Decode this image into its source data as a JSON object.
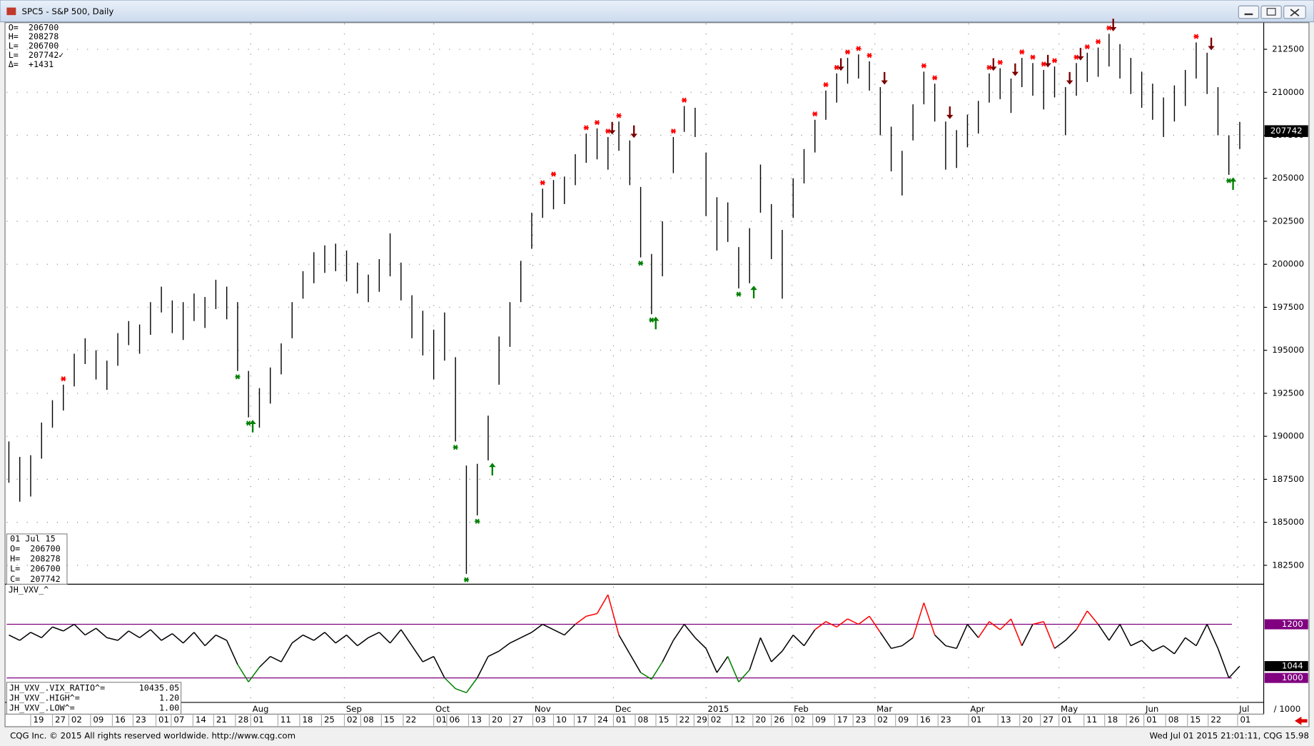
{
  "window": {
    "title": "SPC5 - S&P 500, Daily"
  },
  "footer": {
    "left": "CQG Inc. © 2015 All rights reserved worldwide. http://www.cqg.com",
    "right": "Wed Jul 01 2015 21:01:11, CQG 15.98"
  },
  "chart_data": [
    {
      "type": "ohlc",
      "color": "#000000",
      "grid": true,
      "high": [
        189700,
        188800,
        188900,
        190800,
        192100,
        193000,
        194800,
        195700,
        195000,
        194400,
        196000,
        196700,
        196500,
        197800,
        198700,
        197900,
        197800,
        198300,
        198100,
        199100,
        198700,
        197800,
        193800,
        192800,
        194000,
        195400,
        197800,
        199600,
        200700,
        201100,
        201200,
        200800,
        200100,
        199400,
        200300,
        201800,
        200100,
        198200,
        197300,
        196200,
        197200,
        194600,
        188300,
        188400,
        191200,
        195800,
        197800,
        200200,
        203000,
        204400,
        204900,
        205100,
        206400,
        207600,
        207900,
        207400,
        208300,
        207200,
        204500,
        200600,
        202500,
        207400,
        209200,
        209100,
        206500,
        203900,
        203600,
        201000,
        202100,
        205800,
        203500,
        202000,
        205000,
        206700,
        208400,
        210100,
        211100,
        212000,
        212200,
        211800,
        210300,
        208000,
        206600,
        209300,
        211200,
        210500,
        208300,
        207800,
        208700,
        209500,
        211100,
        211400,
        210800,
        212000,
        211700,
        211300,
        211500,
        210300,
        211700,
        212300,
        212600,
        213400,
        212800,
        212000,
        211200,
        210500,
        209700,
        210400,
        211300,
        212900,
        212300,
        210300,
        207500,
        208278
      ],
      "low": [
        187300,
        186200,
        186500,
        188700,
        190500,
        191500,
        192900,
        194200,
        193300,
        192700,
        194100,
        195300,
        194800,
        195900,
        197200,
        196000,
        195600,
        196700,
        196300,
        197400,
        196800,
        193800,
        191100,
        190500,
        191900,
        193600,
        195700,
        198000,
        198900,
        199500,
        199600,
        199000,
        198300,
        197800,
        198400,
        199300,
        197900,
        195700,
        194700,
        193300,
        194400,
        189700,
        182000,
        185400,
        188600,
        193000,
        195200,
        197800,
        200900,
        202700,
        203200,
        203500,
        204600,
        205900,
        206100,
        205500,
        206600,
        204600,
        200400,
        197100,
        199300,
        205300,
        207700,
        207400,
        202800,
        200800,
        201300,
        198600,
        198900,
        203000,
        200300,
        198000,
        202700,
        204700,
        206500,
        208400,
        209400,
        210500,
        210800,
        210100,
        207500,
        205400,
        204000,
        207200,
        209300,
        208300,
        205500,
        205600,
        206800,
        207600,
        209400,
        209600,
        208800,
        210300,
        209800,
        209000,
        209700,
        207500,
        209800,
        210600,
        210900,
        211500,
        210800,
        209900,
        209100,
        208400,
        207400,
        208300,
        209200,
        210800,
        209900,
        207500,
        205200,
        206700
      ],
      "ylim": [
        181400,
        214000
      ],
      "yticks": [
        182500,
        185000,
        187500,
        190000,
        192500,
        195000,
        197500,
        200000,
        202500,
        205000,
        207500,
        210000,
        212500
      ],
      "xlim": [
        -0.2,
        115.2
      ],
      "xticks": [
        {
          "value": 2.0,
          "label": "19"
        },
        {
          "value": 4.0,
          "label": "27"
        },
        {
          "value": 5.5,
          "label": "02"
        },
        {
          "value": 7.5,
          "label": "09"
        },
        {
          "value": 9.5,
          "label": "16"
        },
        {
          "value": 11.4,
          "label": "23"
        },
        {
          "value": 13.5,
          "label": "01"
        },
        {
          "value": 14.9,
          "label": "07"
        },
        {
          "value": 16.9,
          "label": "14"
        },
        {
          "value": 18.8,
          "label": "21"
        },
        {
          "value": 20.8,
          "label": "28"
        },
        {
          "value": 22.2,
          "label": "01"
        },
        {
          "value": 24.7,
          "label": "11"
        },
        {
          "value": 26.7,
          "label": "18"
        },
        {
          "value": 28.7,
          "label": "25"
        },
        {
          "value": 30.8,
          "label": "02"
        },
        {
          "value": 32.3,
          "label": "08"
        },
        {
          "value": 34.2,
          "label": "15"
        },
        {
          "value": 36.2,
          "label": "22"
        },
        {
          "value": 39.0,
          "label": "01"
        },
        {
          "value": 40.2,
          "label": "06"
        },
        {
          "value": 42.2,
          "label": "13"
        },
        {
          "value": 44.1,
          "label": "20"
        },
        {
          "value": 46.0,
          "label": "27"
        },
        {
          "value": 48.1,
          "label": "03"
        },
        {
          "value": 50.0,
          "label": "10"
        },
        {
          "value": 51.9,
          "label": "17"
        },
        {
          "value": 53.8,
          "label": "24"
        },
        {
          "value": 55.5,
          "label": "01"
        },
        {
          "value": 57.5,
          "label": "08"
        },
        {
          "value": 59.4,
          "label": "15"
        },
        {
          "value": 61.3,
          "label": "22"
        },
        {
          "value": 62.9,
          "label": "29"
        },
        {
          "value": 64.2,
          "label": "02"
        },
        {
          "value": 66.4,
          "label": "12"
        },
        {
          "value": 68.3,
          "label": "20"
        },
        {
          "value": 70.0,
          "label": "26"
        },
        {
          "value": 71.9,
          "label": "02"
        },
        {
          "value": 73.8,
          "label": "09"
        },
        {
          "value": 75.8,
          "label": "17"
        },
        {
          "value": 77.5,
          "label": "23"
        },
        {
          "value": 79.5,
          "label": "02"
        },
        {
          "value": 81.4,
          "label": "09"
        },
        {
          "value": 83.4,
          "label": "16"
        },
        {
          "value": 85.3,
          "label": "23"
        },
        {
          "value": 88.1,
          "label": "01"
        },
        {
          "value": 90.8,
          "label": "13"
        },
        {
          "value": 92.8,
          "label": "20"
        },
        {
          "value": 94.7,
          "label": "27"
        },
        {
          "value": 96.4,
          "label": "01"
        },
        {
          "value": 98.7,
          "label": "11"
        },
        {
          "value": 100.6,
          "label": "18"
        },
        {
          "value": 102.6,
          "label": "26"
        },
        {
          "value": 104.2,
          "label": "01"
        },
        {
          "value": 106.2,
          "label": "08"
        },
        {
          "value": 108.2,
          "label": "15"
        },
        {
          "value": 110.1,
          "label": "22"
        },
        {
          "value": 112.8,
          "label": "01"
        }
      ],
      "month_ticks": [
        {
          "value": 22.2,
          "label": "Aug"
        },
        {
          "value": 30.8,
          "label": "Sep"
        },
        {
          "value": 39.0,
          "label": "Oct"
        },
        {
          "value": 48.1,
          "label": "Nov"
        },
        {
          "value": 55.5,
          "label": "Dec"
        },
        {
          "value": 64.0,
          "label": "2015"
        },
        {
          "value": 71.9,
          "label": "Feb"
        },
        {
          "value": 79.5,
          "label": "Mar"
        },
        {
          "value": 88.1,
          "label": "Apr"
        },
        {
          "value": 96.4,
          "label": "May"
        },
        {
          "value": 104.2,
          "label": "Jun"
        },
        {
          "value": 112.8,
          "label": "Jul"
        }
      ],
      "signals": {
        "sell_stars": {
          "color": "#ff0000",
          "x": [
            5,
            49,
            50,
            53,
            54,
            55,
            56,
            61,
            62,
            74,
            75,
            76,
            77,
            78,
            79,
            84,
            85,
            90,
            91,
            93,
            94,
            95,
            96,
            98,
            99,
            100,
            101,
            109
          ]
        },
        "sell_arrows": {
          "color": "#7a0000",
          "x": [
            55,
            57,
            76,
            80,
            86,
            90,
            92,
            95,
            97,
            98,
            101,
            110
          ]
        },
        "buy_stars": {
          "color": "#008000",
          "x": [
            21,
            22,
            41,
            42,
            43,
            58,
            59,
            67,
            112
          ]
        },
        "buy_arrows": {
          "color": "#008000",
          "x": [
            22,
            44,
            59,
            68,
            112
          ]
        }
      },
      "info_top": [
        {
          "label": "O=",
          "value": 206700
        },
        {
          "label": "H=",
          "value": 208278
        },
        {
          "label": "L=",
          "value": 206700
        },
        {
          "label": "L=",
          "value": 207742,
          "value_label": "207742✓"
        },
        {
          "label": "Δ=",
          "value": 1431,
          "value_label": "+1431"
        }
      ],
      "info_box": {
        "date": "01 Jul 15",
        "rows": [
          {
            "label": "O=",
            "value": 206700
          },
          {
            "label": "H=",
            "value": 208278
          },
          {
            "label": "L=",
            "value": 206700
          },
          {
            "label": "C=",
            "value": 207742
          }
        ]
      },
      "divisor_label": "/ 1000"
    },
    {
      "type": "indicator-line",
      "title": "JH_VXV_^",
      "values": [
        1160,
        1140,
        1170,
        1150,
        1190,
        1175,
        1200,
        1160,
        1185,
        1150,
        1140,
        1175,
        1150,
        1180,
        1140,
        1165,
        1130,
        1170,
        1120,
        1160,
        1140,
        1050,
        985,
        1040,
        1080,
        1060,
        1130,
        1160,
        1140,
        1170,
        1130,
        1160,
        1120,
        1150,
        1170,
        1130,
        1180,
        1120,
        1060,
        1080,
        1000,
        960,
        945,
        1000,
        1080,
        1100,
        1130,
        1150,
        1170,
        1200,
        1180,
        1160,
        1200,
        1230,
        1240,
        1310,
        1160,
        1090,
        1020,
        995,
        1060,
        1140,
        1200,
        1150,
        1110,
        1020,
        1080,
        985,
        1030,
        1150,
        1060,
        1100,
        1160,
        1120,
        1180,
        1210,
        1190,
        1220,
        1200,
        1230,
        1170,
        1110,
        1120,
        1150,
        1280,
        1160,
        1120,
        1110,
        1200,
        1150,
        1210,
        1180,
        1220,
        1120,
        1200,
        1210,
        1110,
        1140,
        1180,
        1250,
        1200,
        1140,
        1200,
        1120,
        1140,
        1100,
        1120,
        1090,
        1150,
        1120,
        1200,
        1110,
        1000,
        1044
      ],
      "ylim": [
        915,
        1340
      ],
      "ref_lines": [
        1200,
        1000
      ],
      "ref_color": "#800080",
      "colors": {
        "normal": "#000000",
        "above": "#ff0000",
        "below": "#008000"
      },
      "info": [
        {
          "label": "JH_VXV_.VIX_RATIO^=",
          "value": "10435.05"
        },
        {
          "label": "JH_VXV_.HIGH^=",
          "value": "1.20"
        },
        {
          "label": "JH_VXV_.LOW^=",
          "value": "1.00"
        }
      ]
    }
  ]
}
